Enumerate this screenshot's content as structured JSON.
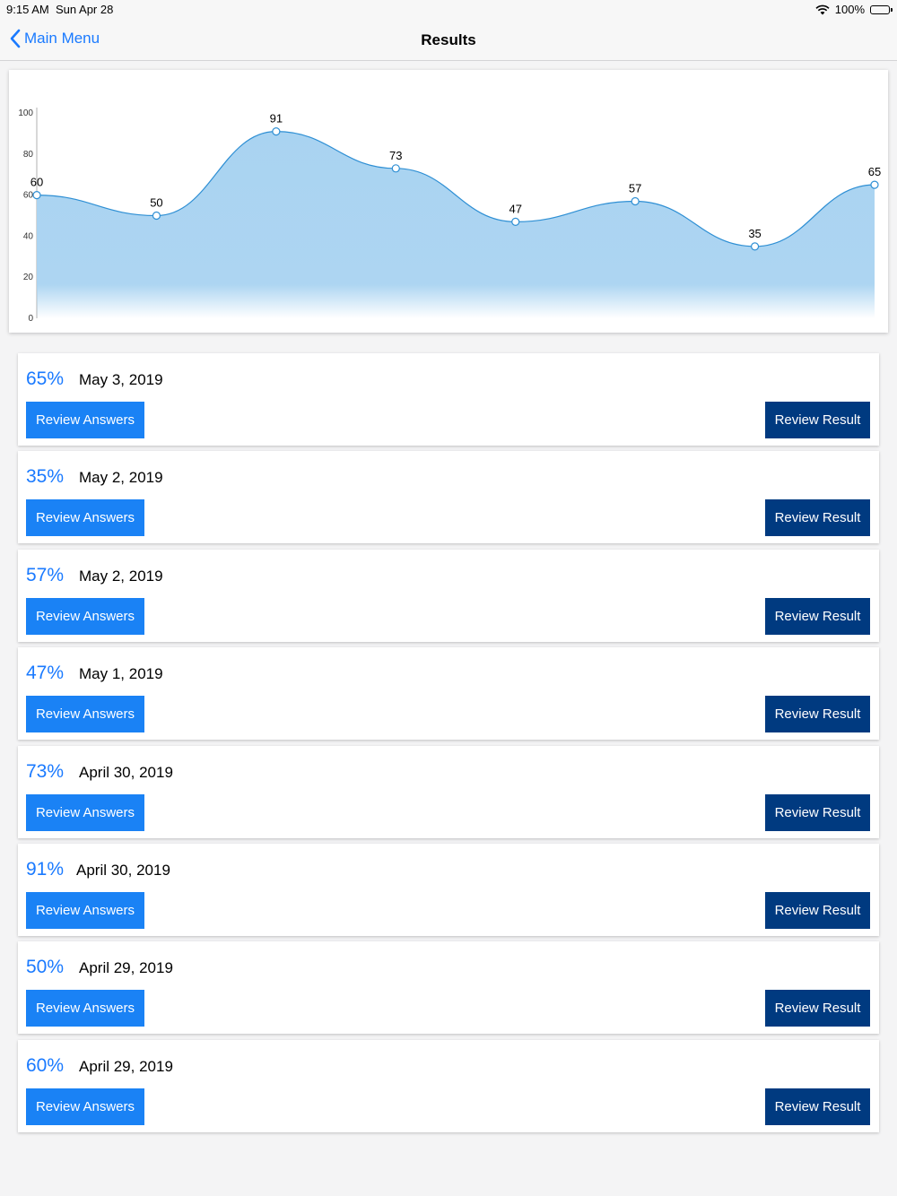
{
  "status": {
    "time": "9:15 AM",
    "date": "Sun Apr 28",
    "battery": "100%"
  },
  "nav": {
    "back_label": "Main Menu",
    "title": "Results"
  },
  "chart_data": {
    "type": "area",
    "x": [
      1,
      2,
      3,
      4,
      5,
      6,
      7,
      8
    ],
    "values": [
      60,
      50,
      91,
      73,
      47,
      57,
      35,
      65
    ],
    "yticks": [
      0,
      20,
      40,
      60,
      80,
      100
    ],
    "ylim": [
      0,
      100
    ],
    "title": "",
    "xlabel": "",
    "ylabel": "",
    "grid": false,
    "line_color": "#2e8fd4",
    "fill_color": "#a9d3f1"
  },
  "results": [
    {
      "pct": "65%",
      "date": "May 3, 2019"
    },
    {
      "pct": "35%",
      "date": "May 2, 2019"
    },
    {
      "pct": "57%",
      "date": "May 2, 2019"
    },
    {
      "pct": "47%",
      "date": "May 1, 2019"
    },
    {
      "pct": "73%",
      "date": "April 30, 2019"
    },
    {
      "pct": "91%",
      "date": "April 30, 2019"
    },
    {
      "pct": "50%",
      "date": "April 29, 2019"
    },
    {
      "pct": "60%",
      "date": "April 29, 2019"
    }
  ],
  "buttons": {
    "review_answers": "Review Answers",
    "review_result": "Review Result"
  },
  "colors": {
    "accent": "#1a7aff",
    "primary_button": "#1a82f5",
    "secondary_button": "#003a80"
  }
}
